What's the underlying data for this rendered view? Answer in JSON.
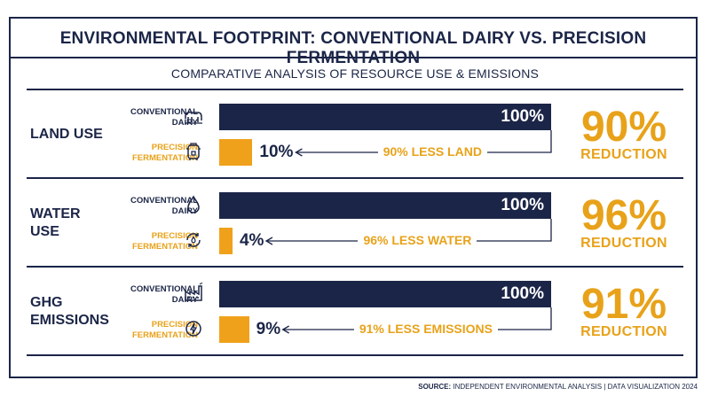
{
  "title": "ENVIRONMENTAL FOOTPRINT: CONVENTIONAL DAIRY VS. PRECISION FERMENTATION",
  "subtitle": "COMPARATIVE ANALYSIS OF RESOURCE USE & EMISSIONS",
  "source_label": "SOURCE:",
  "source_text": "INDEPENDENT ENVIRONMENTAL ANALYSIS | DATA VISUALIZATION 2024",
  "colors": {
    "conventional": "#1b2547",
    "precision": "#f0a11b",
    "accent_text": "#e8a21a"
  },
  "legend": {
    "conventional_line1": "CONVENTIONAL",
    "conventional_line2": "DAIRY",
    "precision_line1": "PRECISION",
    "precision_line2": "FERMENTATION"
  },
  "chart_data": {
    "type": "bar",
    "categories": [
      "LAND USE",
      "WATER USE",
      "GHG EMISSIONS"
    ],
    "series": [
      {
        "name": "CONVENTIONAL DAIRY",
        "values": [
          100,
          100,
          100
        ]
      },
      {
        "name": "PRECISION FERMENTATION",
        "values": [
          10,
          4,
          9
        ]
      }
    ],
    "unit": "%",
    "xlim": [
      0,
      100
    ],
    "orientation": "horizontal",
    "sections": [
      {
        "label_line1": "LAND USE",
        "label_line2": "",
        "conv_value": 100,
        "prec_value": 10,
        "conv_text": "100%",
        "prec_text": "10%",
        "arrow_text": "90% LESS LAND",
        "reduction": "90%",
        "reduction_word": "REDUCTION",
        "conv_icon": "cow-icon",
        "prec_icon": "bioreactor-icon"
      },
      {
        "label_line1": "WATER",
        "label_line2": "USE",
        "conv_value": 100,
        "prec_value": 4,
        "conv_text": "100%",
        "prec_text": "4%",
        "arrow_text": "96% LESS WATER",
        "reduction": "96%",
        "reduction_word": "REDUCTION",
        "conv_icon": "water-drop-icon",
        "prec_icon": "water-recycle-icon"
      },
      {
        "label_line1": "GHG",
        "label_line2": "EMISSIONS",
        "conv_value": 100,
        "prec_value": 9,
        "conv_text": "100%",
        "prec_text": "9%",
        "arrow_text": "91% LESS EMISSIONS",
        "reduction": "91%",
        "reduction_word": "REDUCTION",
        "conv_icon": "factory-icon",
        "prec_icon": "clean-energy-icon"
      }
    ]
  }
}
